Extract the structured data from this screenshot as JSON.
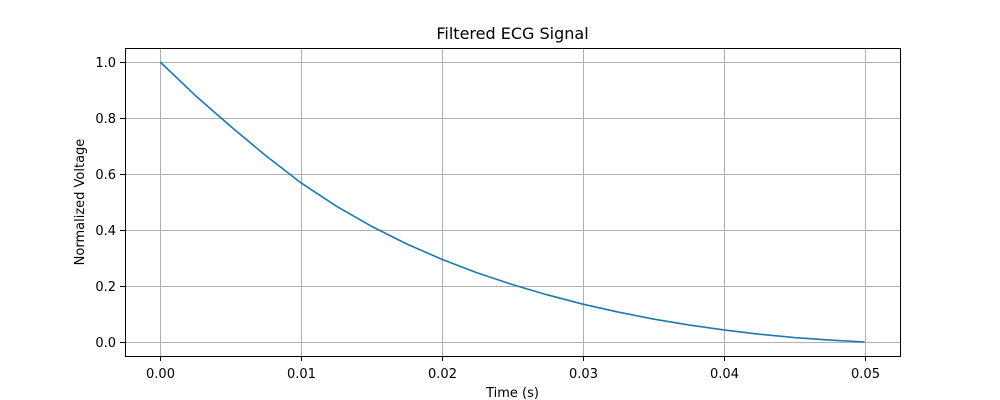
{
  "chart_data": {
    "type": "line",
    "title": "Filtered ECG Signal",
    "xlabel": "Time (s)",
    "ylabel": "Normalized Voltage",
    "xlim": [
      -0.0025,
      0.0525
    ],
    "ylim": [
      -0.05,
      1.05
    ],
    "xticks": [
      0.0,
      0.01,
      0.02,
      0.03,
      0.04,
      0.05
    ],
    "xtick_labels": [
      "0.00",
      "0.01",
      "0.02",
      "0.03",
      "0.04",
      "0.05"
    ],
    "yticks": [
      0.0,
      0.2,
      0.4,
      0.6,
      0.8,
      1.0
    ],
    "ytick_labels": [
      "0.0",
      "0.2",
      "0.4",
      "0.6",
      "0.8",
      "1.0"
    ],
    "grid": true,
    "series": [
      {
        "color": "#1f77b4",
        "x": [
          0.0,
          0.0025,
          0.005,
          0.0075,
          0.01,
          0.0125,
          0.015,
          0.0175,
          0.02,
          0.0225,
          0.025,
          0.0275,
          0.03,
          0.0325,
          0.035,
          0.0375,
          0.04,
          0.0425,
          0.045,
          0.0475,
          0.05
        ],
        "y": [
          1.0,
          0.88,
          0.77,
          0.665,
          0.568,
          0.485,
          0.413,
          0.35,
          0.295,
          0.247,
          0.205,
          0.168,
          0.135,
          0.107,
          0.082,
          0.061,
          0.043,
          0.028,
          0.016,
          0.007,
          0.0
        ]
      }
    ]
  }
}
